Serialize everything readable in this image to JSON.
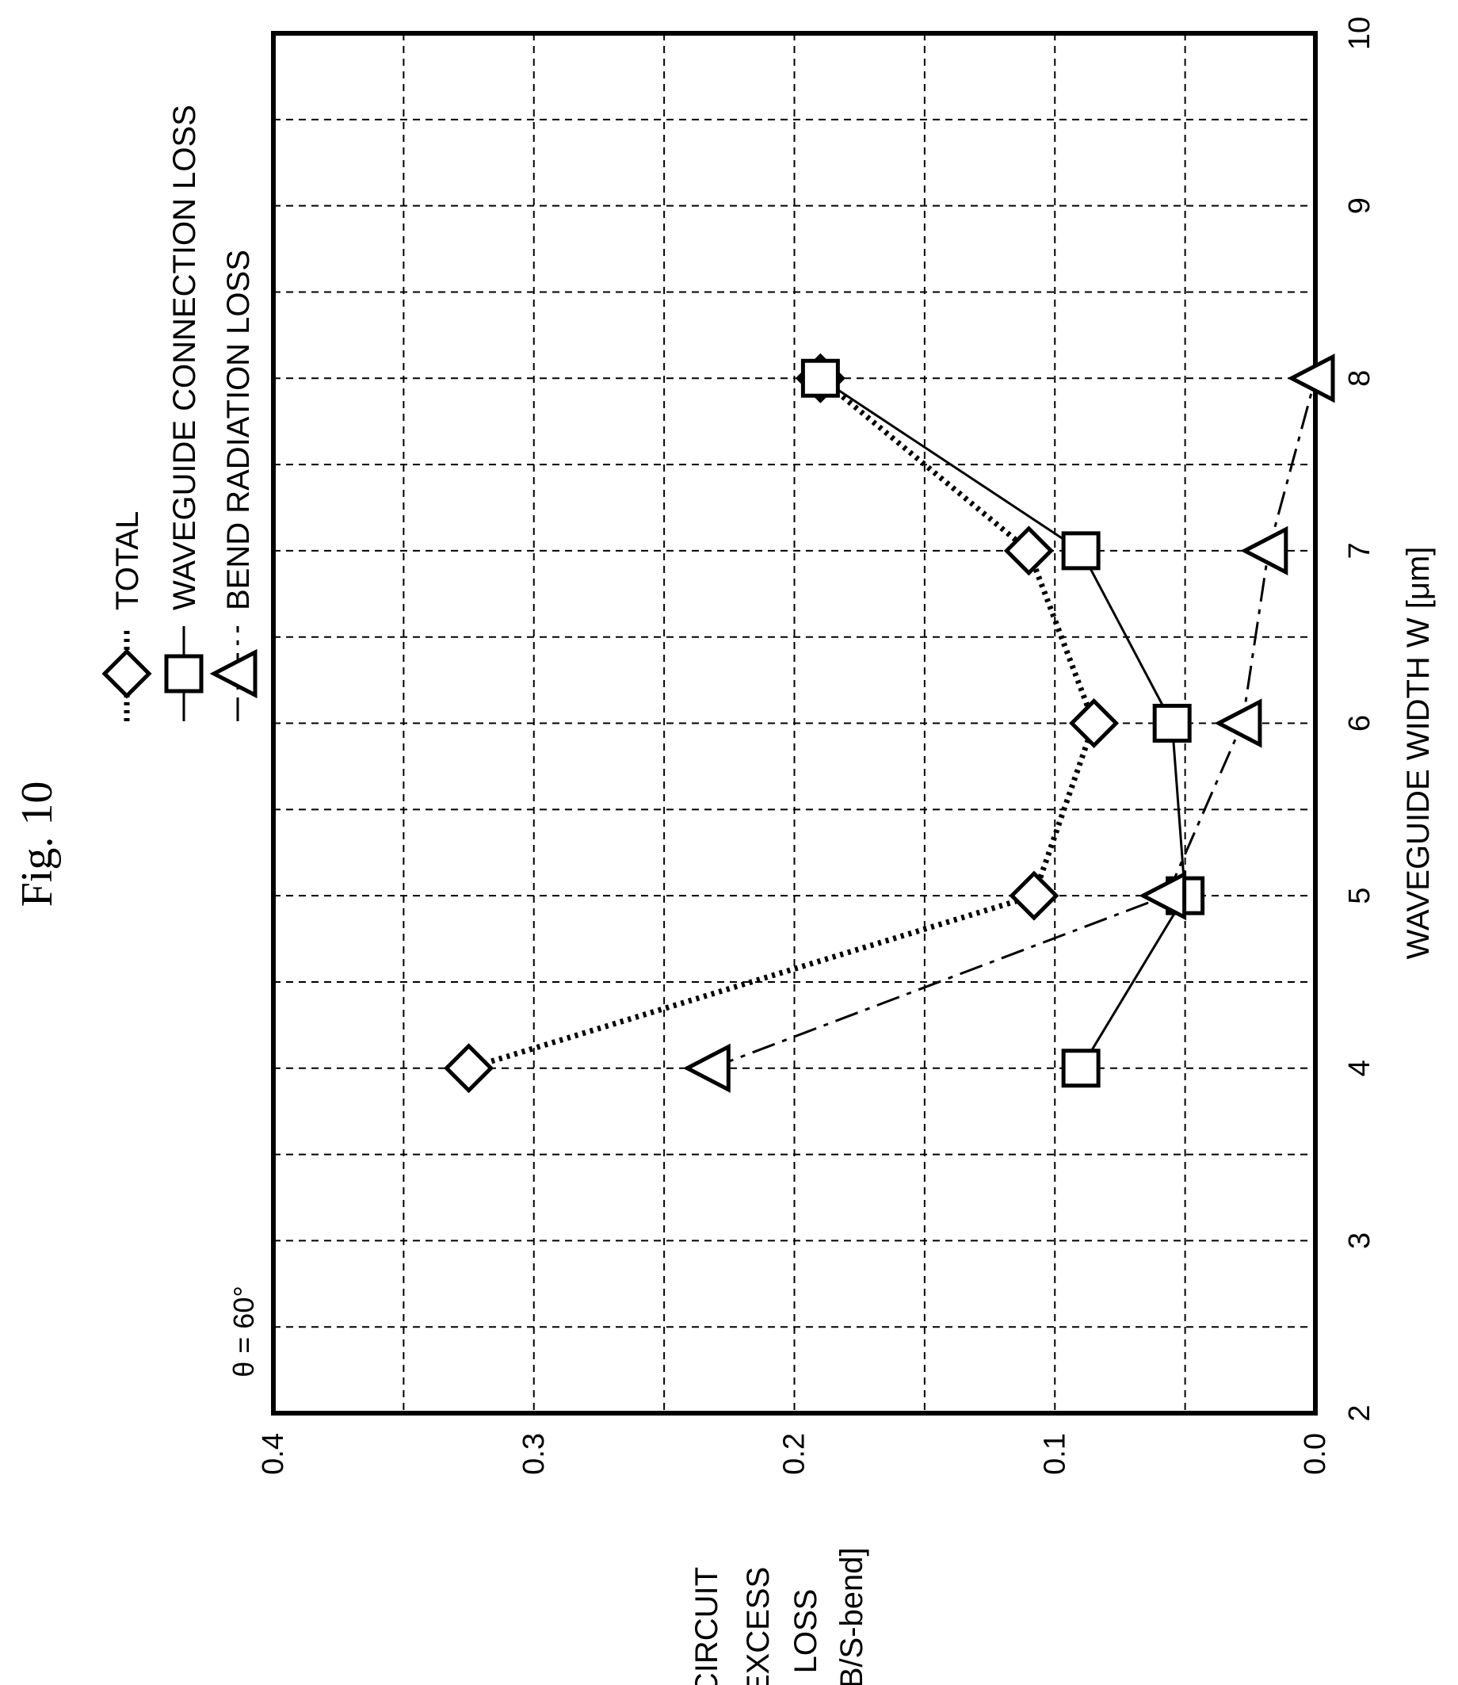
{
  "figure_label": "Fig. 10",
  "annotation": "θ = 60°",
  "chart_data": {
    "type": "line",
    "orientation": "rotated-90-ccw",
    "xlabel": "WAVEGUIDE WIDTH W [μm]",
    "ylabel_lines": [
      "CIRCUIT",
      "EXCESS",
      "LOSS",
      "[dB/S-bend]"
    ],
    "xlim": [
      2,
      10
    ],
    "ylim": [
      0.0,
      0.4
    ],
    "x_ticks": [
      2,
      3,
      4,
      5,
      6,
      7,
      8,
      9,
      10
    ],
    "x_tick_labels": [
      "2",
      "3",
      "4",
      "5",
      "6",
      "7",
      "8",
      "9",
      "10"
    ],
    "y_ticks": [
      0.0,
      0.1,
      0.2,
      0.3,
      0.4
    ],
    "y_tick_labels": [
      "0.0",
      "0.1",
      "0.2",
      "0.3",
      "0.4"
    ],
    "grid": true,
    "legend_position": "top",
    "series": [
      {
        "name": "TOTAL",
        "marker": "diamond",
        "line_style": "dotted",
        "x": [
          4,
          5,
          6,
          7,
          8
        ],
        "values": [
          0.325,
          0.108,
          0.085,
          0.11,
          0.19
        ]
      },
      {
        "name": "WAVEGUIDE CONNECTION LOSS",
        "marker": "square",
        "line_style": "solid",
        "x": [
          4,
          5,
          6,
          7,
          8
        ],
        "values": [
          0.09,
          0.05,
          0.055,
          0.09,
          0.19
        ]
      },
      {
        "name": "BEND RADIATION LOSS",
        "marker": "triangle",
        "line_style": "dash-dot",
        "x": [
          4,
          5,
          6,
          7,
          8
        ],
        "values": [
          0.232,
          0.057,
          0.028,
          0.018,
          0.0
        ]
      }
    ]
  }
}
